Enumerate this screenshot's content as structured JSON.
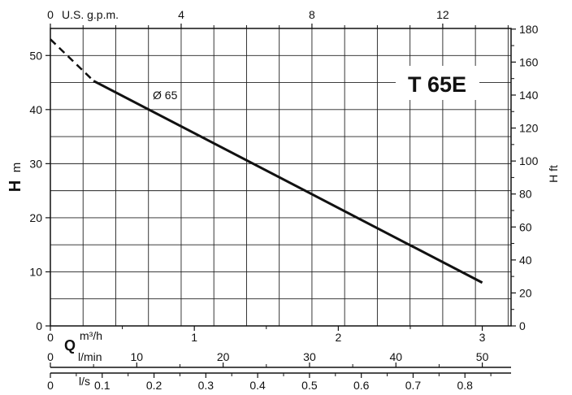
{
  "chart_data": {
    "type": "line",
    "title": "T 65E",
    "series": [
      {
        "name": "Ø 65",
        "x": [
          0,
          0.3,
          3.0
        ],
        "y": [
          53,
          45.3,
          8
        ],
        "dashed_segment": {
          "x": [
            0,
            0.3
          ],
          "y": [
            53,
            45.3
          ]
        }
      }
    ],
    "grid": true,
    "axes": {
      "left": {
        "title_main": "H",
        "title_unit": "m",
        "ylim": [
          0,
          55
        ],
        "ticks": [
          0,
          10,
          20,
          30,
          40,
          50
        ]
      },
      "right": {
        "title": "H ft",
        "ylim": [
          0,
          180.4
        ],
        "ticks": [
          0,
          20,
          40,
          60,
          80,
          100,
          120,
          140,
          160,
          180
        ]
      },
      "bottom_m3h": {
        "prefix": "Q",
        "unit": "m³/h",
        "xlim": [
          0,
          3.2
        ],
        "ticks": [
          0,
          1,
          2,
          3
        ],
        "minor_ticks": [
          0.5,
          1.5,
          2.5
        ]
      },
      "bottom_lmin": {
        "unit": "l/min",
        "xlim": [
          0,
          53.33
        ],
        "ticks": [
          0,
          10,
          20,
          30,
          40,
          50
        ],
        "minor_ticks": [
          5,
          15,
          25,
          35,
          45
        ]
      },
      "bottom_ls": {
        "unit": "l/s",
        "xlim": [
          0,
          0.889
        ],
        "ticks": [
          0,
          0.1,
          0.2,
          0.3,
          0.4,
          0.5,
          0.6,
          0.7,
          0.8
        ],
        "tick_labels": [
          "0",
          "0.1",
          "0.2",
          "0.3",
          "0.4",
          "0.5",
          "0.6",
          "0.7",
          "0.8"
        ],
        "minor_ticks": [
          0.05,
          0.15,
          0.25,
          0.35,
          0.45,
          0.55,
          0.65,
          0.75,
          0.85
        ]
      },
      "top_gpm": {
        "unit": "U.S. g.p.m.",
        "xlim": [
          0,
          14.09
        ],
        "ticks": [
          0,
          4,
          8,
          12
        ],
        "minor_ticks": [
          1,
          2,
          3,
          5,
          6,
          7,
          9,
          10,
          11,
          13,
          14
        ]
      }
    }
  }
}
